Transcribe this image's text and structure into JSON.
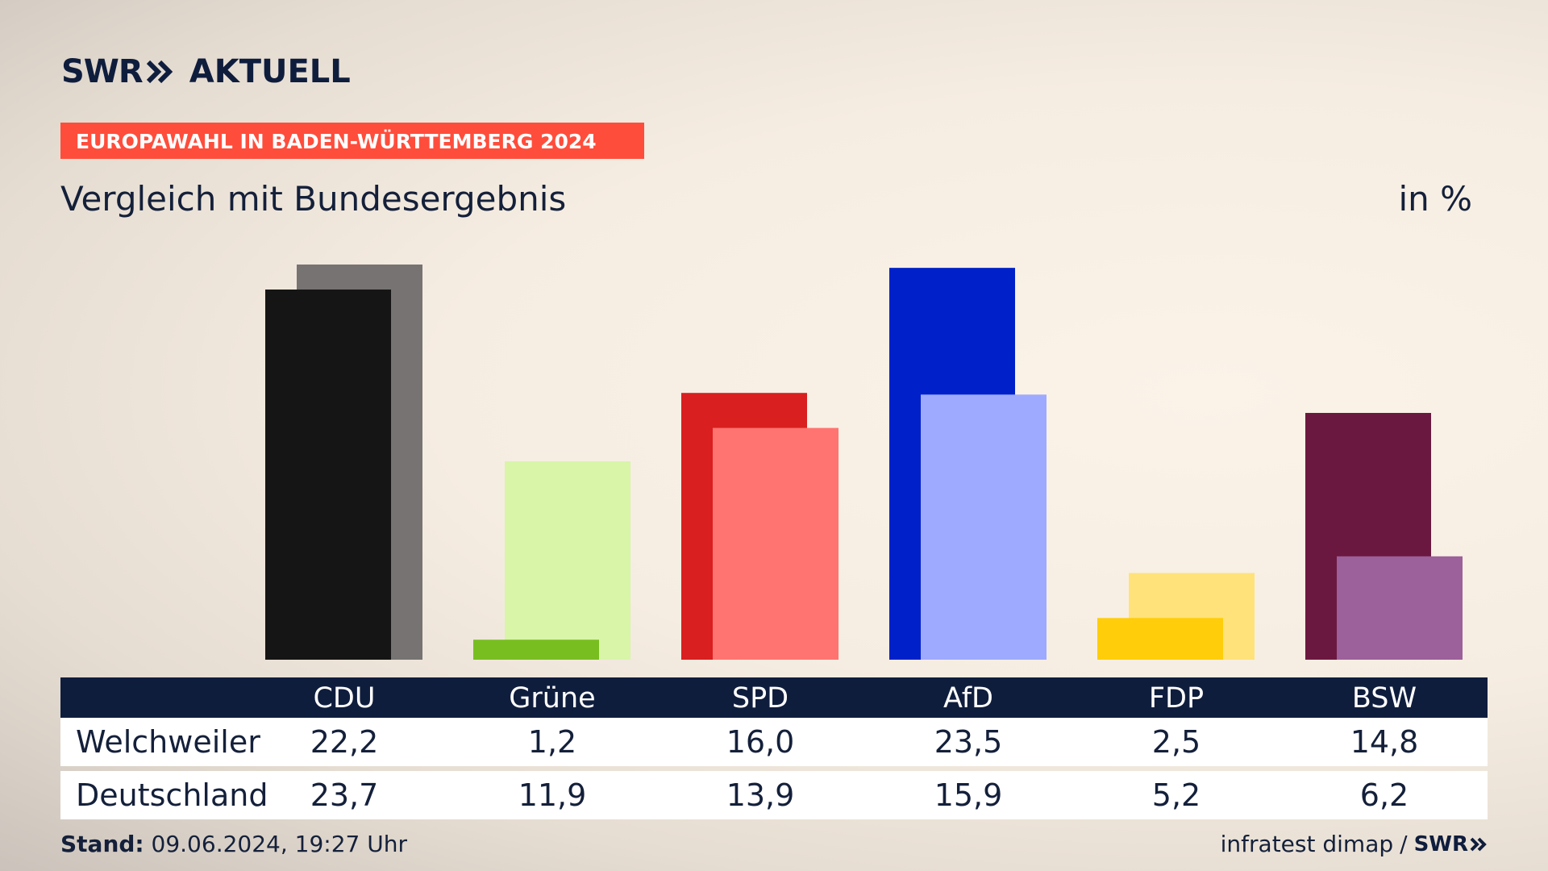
{
  "brand": {
    "logo_swr": "SWR",
    "logo_name": "AKTUELL",
    "small_logo": "SWR",
    "chevron_icon": "double-chevron-icon"
  },
  "tag": "EUROPAWAHL IN BADEN-WÜRTTEMBERG 2024",
  "subtitle": "Vergleich mit Bundesergebnis",
  "unit": "in %",
  "table": {
    "headers": [
      "CDU",
      "Grüne",
      "SPD",
      "AfD",
      "FDP",
      "BSW"
    ],
    "rows": [
      {
        "label": "Welchweiler",
        "values": [
          "22,2",
          "1,2",
          "16,0",
          "23,5",
          "2,5",
          "14,8"
        ]
      },
      {
        "label": "Deutschland",
        "values": [
          "23,7",
          "11,9",
          "13,9",
          "15,9",
          "5,2",
          "6,2"
        ]
      }
    ]
  },
  "footer": {
    "stand_label": "Stand:",
    "stand_value": "09.06.2024, 19:27 Uhr",
    "source": "infratest dimap",
    "separator": "/"
  },
  "chart_data": {
    "type": "bar",
    "categories": [
      "CDU",
      "Grüne",
      "SPD",
      "AfD",
      "FDP",
      "BSW"
    ],
    "series": [
      {
        "name": "Welchweiler",
        "values": [
          22.2,
          1.2,
          16.0,
          23.5,
          2.5,
          14.8
        ],
        "colors": [
          "#151515",
          "#78be20",
          "#d91f1f",
          "#0021c9",
          "#ffcd0a",
          "#6b1840"
        ]
      },
      {
        "name": "Deutschland",
        "values": [
          23.7,
          11.9,
          13.9,
          15.9,
          5.2,
          6.2
        ],
        "colors": [
          "#767372",
          "#d8f5a8",
          "#ff7470",
          "#9eaaff",
          "#ffe27a",
          "#9c609a"
        ]
      }
    ],
    "ylim": [
      0,
      23.7
    ]
  }
}
